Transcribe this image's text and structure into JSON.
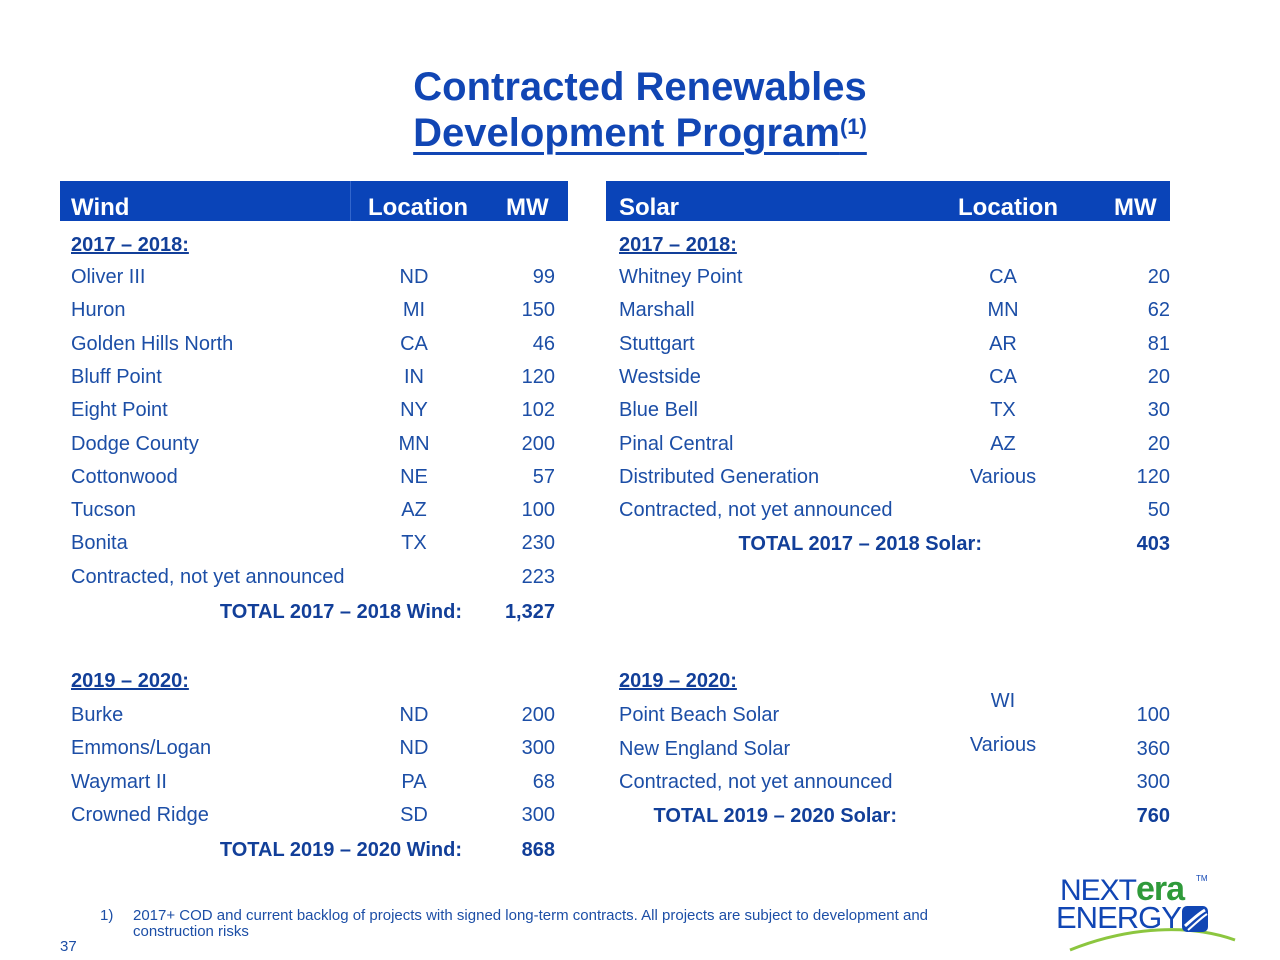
{
  "title": {
    "line1": "Contracted Renewables",
    "line2": "Development Program",
    "line2_sup": "(1)"
  },
  "wind": {
    "headers": {
      "name": "Wind",
      "location": "Location",
      "mw": "MW"
    },
    "section1": "2017 – 2018:",
    "rows1": [
      {
        "name": "Oliver III",
        "location": "ND",
        "mw": "99"
      },
      {
        "name": "Huron",
        "location": "MI",
        "mw": "150"
      },
      {
        "name": "Golden Hills North",
        "location": "CA",
        "mw": "46"
      },
      {
        "name": "Bluff Point",
        "location": "IN",
        "mw": "120"
      },
      {
        "name": "Eight Point",
        "location": "NY",
        "mw": "102"
      },
      {
        "name": "Dodge County",
        "location": "MN",
        "mw": "200"
      },
      {
        "name": "Cottonwood",
        "location": "NE",
        "mw": "57"
      },
      {
        "name": "Tucson",
        "location": "AZ",
        "mw": "100"
      },
      {
        "name": "Bonita",
        "location": "TX",
        "mw": "230"
      },
      {
        "name": "Contracted, not yet announced",
        "location": "",
        "mw": "223"
      }
    ],
    "total1_label": "TOTAL 2017 – 2018 Wind:",
    "total1_value": "1,327",
    "section2": "2019 – 2020:",
    "rows2": [
      {
        "name": "Burke",
        "location": "ND",
        "mw": "200"
      },
      {
        "name": "Emmons/Logan",
        "location": "ND",
        "mw": "300"
      },
      {
        "name": "Waymart II",
        "location": "PA",
        "mw": "68"
      },
      {
        "name": "Crowned Ridge",
        "location": "SD",
        "mw": "300"
      }
    ],
    "total2_label": "TOTAL 2019 – 2020 Wind:",
    "total2_value": "868"
  },
  "solar": {
    "headers": {
      "name": "Solar",
      "location": "Location",
      "mw": "MW"
    },
    "section1": "2017 – 2018:",
    "rows1": [
      {
        "name": "Whitney Point",
        "location": "CA",
        "mw": "20"
      },
      {
        "name": "Marshall",
        "location": "MN",
        "mw": "62"
      },
      {
        "name": "Stuttgart",
        "location": "AR",
        "mw": "81"
      },
      {
        "name": "Westside",
        "location": "CA",
        "mw": "20"
      },
      {
        "name": "Blue Bell",
        "location": "TX",
        "mw": "30"
      },
      {
        "name": "Pinal Central",
        "location": "AZ",
        "mw": "20"
      },
      {
        "name": "Distributed Generation",
        "location": "Various",
        "mw": "120"
      },
      {
        "name": "Contracted, not yet announced",
        "location": "",
        "mw": "50"
      }
    ],
    "total1_label": "TOTAL 2017 – 2018 Solar:",
    "total1_value": "403",
    "section2": "2019 – 2020:",
    "rows2": [
      {
        "name": "Point Beach Solar",
        "location": "WI",
        "mw": "100"
      },
      {
        "name": "New England Solar",
        "location": "Various",
        "mw": "360"
      },
      {
        "name": "Contracted, not yet announced",
        "location": "",
        "mw": "300"
      }
    ],
    "total2_label": "TOTAL 2019 – 2020 Solar:",
    "total2_value": "760"
  },
  "footnote": {
    "number": "1)",
    "text": "2017+ COD and current backlog of projects with signed long-term contracts.  All projects are subject to development and construction risks"
  },
  "page_number": "37",
  "logo": {
    "next": "NEXT",
    "era": "era",
    "tm": "TM",
    "energy": "ENERGY"
  },
  "colors": {
    "header_bg": "#0a44b8",
    "title": "#1146b4",
    "text": "#1c4ea6",
    "logo_green": "#2f9a3a"
  }
}
